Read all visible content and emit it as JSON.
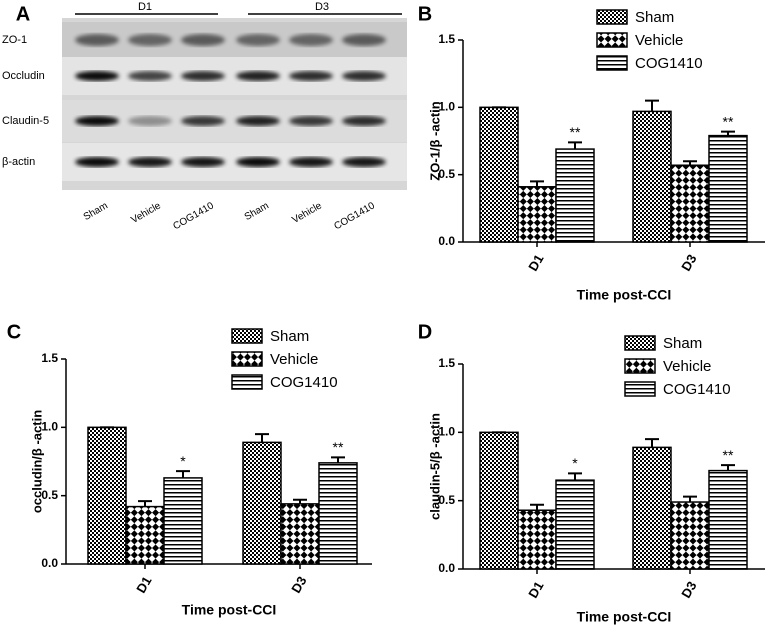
{
  "blot": {
    "panel": "A",
    "groups": [
      "D1",
      "D3"
    ],
    "rows": [
      "ZO-1",
      "Occludin",
      "Claudin-5",
      "β-actin"
    ],
    "lanes": [
      "Sham",
      "Vehicle",
      "COG1410",
      "Sham",
      "Vehicle",
      "COG1410"
    ]
  },
  "chart_data": [
    {
      "type": "bar",
      "panel": "B",
      "ylabel": "ZO-1/β -actin",
      "xlabel": "Time post-CCI",
      "categories": [
        "D1",
        "D3"
      ],
      "series": [
        {
          "name": "Sham",
          "pattern": "fine-check",
          "values": [
            1.0,
            0.97
          ],
          "errors": [
            0,
            0.08
          ]
        },
        {
          "name": "Vehicle",
          "pattern": "coarse-check",
          "values": [
            0.41,
            0.57
          ],
          "errors": [
            0.04,
            0.03
          ]
        },
        {
          "name": "COG1410",
          "pattern": "h-stripes",
          "values": [
            0.69,
            0.79
          ],
          "errors": [
            0.05,
            0.03
          ],
          "annotations": [
            "**",
            "**"
          ]
        }
      ],
      "ylim": [
        0,
        1.5
      ],
      "yticks": [
        {
          "value": 0,
          "label": "0.0"
        },
        0.5,
        {
          "value": 1,
          "label": "1.0"
        },
        1.5
      ],
      "grid": false,
      "legend": "top-right"
    },
    {
      "type": "bar",
      "panel": "C",
      "ylabel": "occludin/β -actin",
      "xlabel": "Time post-CCI",
      "categories": [
        "D1",
        "D3"
      ],
      "series": [
        {
          "name": "Sham",
          "pattern": "fine-check",
          "values": [
            1.0,
            0.89
          ],
          "errors": [
            0,
            0.06
          ]
        },
        {
          "name": "Vehicle",
          "pattern": "coarse-check",
          "values": [
            0.42,
            0.44
          ],
          "errors": [
            0.04,
            0.03
          ]
        },
        {
          "name": "COG1410",
          "pattern": "h-stripes",
          "values": [
            0.63,
            0.74
          ],
          "errors": [
            0.05,
            0.04
          ],
          "annotations": [
            "*",
            "**"
          ]
        }
      ],
      "ylim": [
        0,
        1.5
      ],
      "yticks": [
        {
          "value": 0,
          "label": "0.0"
        },
        0.5,
        {
          "value": 1,
          "label": "1.0"
        },
        1.5
      ],
      "grid": false,
      "legend": "top-right"
    },
    {
      "type": "bar",
      "panel": "D",
      "ylabel": "claudin-5/β -actin",
      "xlabel": "Time post-CCI",
      "categories": [
        "D1",
        "D3"
      ],
      "series": [
        {
          "name": "Sham",
          "pattern": "fine-check",
          "values": [
            1.0,
            0.89
          ],
          "errors": [
            0,
            0.06
          ]
        },
        {
          "name": "Vehicle",
          "pattern": "coarse-check",
          "values": [
            0.43,
            0.49
          ],
          "errors": [
            0.04,
            0.04
          ]
        },
        {
          "name": "COG1410",
          "pattern": "h-stripes",
          "values": [
            0.65,
            0.72
          ],
          "errors": [
            0.05,
            0.04
          ],
          "annotations": [
            "*",
            "**"
          ]
        }
      ],
      "ylim": [
        0,
        1.5
      ],
      "yticks": [
        {
          "value": 0,
          "label": "0.0"
        },
        0.5,
        {
          "value": 1,
          "label": "1.0"
        },
        1.5
      ],
      "grid": false,
      "legend": "top-right"
    }
  ]
}
